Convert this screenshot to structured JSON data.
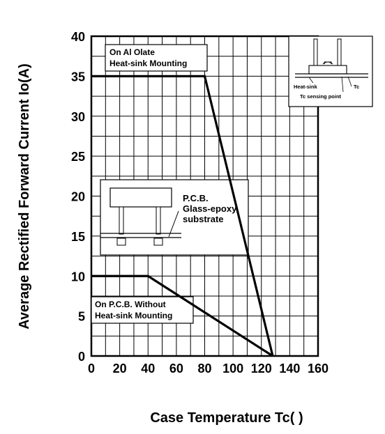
{
  "chart_data": {
    "type": "line",
    "title": "",
    "xlabel": "Case Temperature Tc(     )",
    "ylabel": "Average Rectified Forward Current Io(A)",
    "xlim": [
      0,
      160
    ],
    "ylim": [
      0,
      40
    ],
    "x_ticks": [
      "0",
      "20",
      "40",
      "60",
      "80",
      "100",
      "120",
      "140",
      "160"
    ],
    "y_ticks": [
      "0",
      "5",
      "10",
      "15",
      "20",
      "25",
      "30",
      "35",
      "40"
    ],
    "grid": true,
    "series": [
      {
        "name": "On Al Olate Heat-sink Mounting",
        "x": [
          0,
          80,
          128
        ],
        "y": [
          35,
          35,
          0
        ]
      },
      {
        "name": "On P.C.B. Without Heat-sink Mounting",
        "x": [
          0,
          40,
          128
        ],
        "y": [
          10,
          10,
          0
        ]
      }
    ],
    "annotations": {
      "aluminum_box": [
        "On Al Olate",
        "Heat-sink Mounting"
      ],
      "pcb_box": [
        "On P.C.B. Without",
        "Heat-sink Mounting"
      ],
      "pcb_inset": [
        "P.C.B.",
        "Glass-epoxy",
        "substrate"
      ],
      "heatsink_inset": [
        "Heat-sink",
        "Tc",
        "Tc sensing point"
      ]
    }
  }
}
